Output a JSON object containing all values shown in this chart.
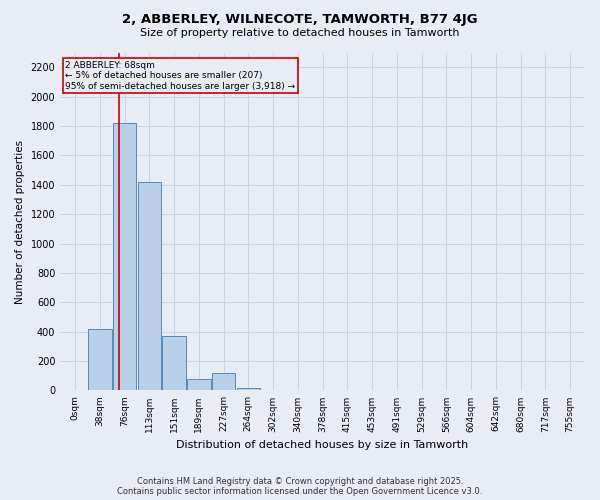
{
  "title1": "2, ABBERLEY, WILNECOTE, TAMWORTH, B77 4JG",
  "title2": "Size of property relative to detached houses in Tamworth",
  "xlabel": "Distribution of detached houses by size in Tamworth",
  "ylabel": "Number of detached properties",
  "footer1": "Contains HM Land Registry data © Crown copyright and database right 2025.",
  "footer2": "Contains public sector information licensed under the Open Government Licence v3.0.",
  "bar_labels": [
    "0sqm",
    "38sqm",
    "76sqm",
    "113sqm",
    "151sqm",
    "189sqm",
    "227sqm",
    "264sqm",
    "302sqm",
    "340sqm",
    "378sqm",
    "415sqm",
    "453sqm",
    "491sqm",
    "529sqm",
    "566sqm",
    "604sqm",
    "642sqm",
    "680sqm",
    "717sqm",
    "755sqm"
  ],
  "bar_values": [
    5,
    420,
    1820,
    1420,
    370,
    75,
    120,
    15,
    0,
    0,
    0,
    0,
    0,
    0,
    0,
    0,
    0,
    0,
    0,
    0,
    0
  ],
  "bar_color": "#b8d0e8",
  "bar_edge_color": "#5588bb",
  "grid_color": "#c8d4e4",
  "background_color": "#e8ecf4",
  "vline_color": "#cc0000",
  "annotation_text": "2 ABBERLEY: 68sqm\n← 5% of detached houses are smaller (207)\n95% of semi-detached houses are larger (3,918) →",
  "annotation_box_color": "#cc0000",
  "ylim": [
    0,
    2300
  ],
  "yticks": [
    0,
    200,
    400,
    600,
    800,
    1000,
    1200,
    1400,
    1600,
    1800,
    2000,
    2200
  ],
  "vline_xindex": 1.78
}
